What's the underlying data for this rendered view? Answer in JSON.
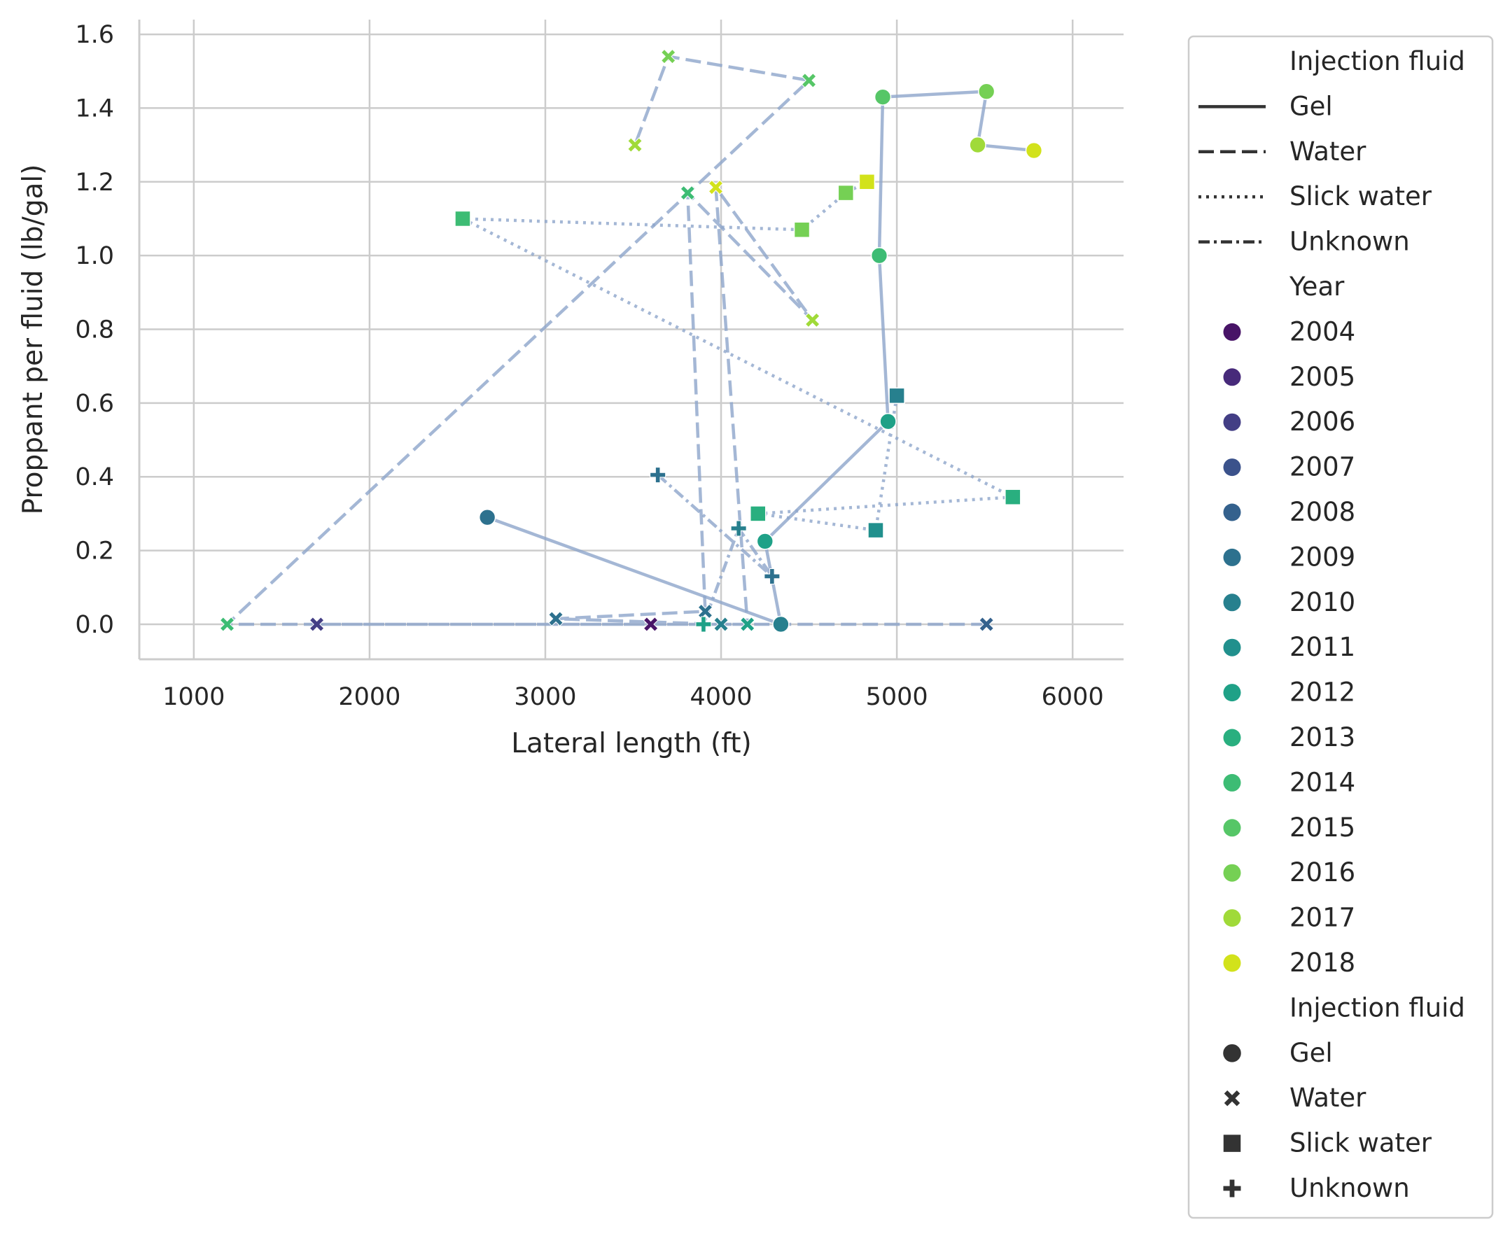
{
  "chart_data": {
    "type": "scatter",
    "xlabel": "Lateral length (ft)",
    "ylabel": "Proppant per fluid (lb/gal)",
    "xlim": [
      690,
      6290
    ],
    "ylim": [
      -0.095,
      1.64
    ],
    "x_ticks": [
      1000,
      2000,
      3000,
      4000,
      5000,
      6000
    ],
    "x_tick_labels": [
      "1000",
      "2000",
      "3000",
      "4000",
      "5000",
      "6000"
    ],
    "y_ticks": [
      0.0,
      0.2,
      0.4,
      0.6,
      0.8,
      1.0,
      1.2,
      1.4,
      1.6
    ],
    "y_tick_labels": [
      "0.0",
      "0.2",
      "0.4",
      "0.6",
      "0.8",
      "1.0",
      "1.2",
      "1.4",
      "1.6"
    ],
    "grid": true,
    "legend_position": "outside-right",
    "line_color": "#8da5ca",
    "year_colors": {
      "2004": "#481467",
      "2005": "#472a7a",
      "2006": "#433e85",
      "2007": "#3b528b",
      "2008": "#34618d",
      "2009": "#2d718e",
      "2010": "#27808e",
      "2011": "#21908d",
      "2012": "#1fa187",
      "2013": "#29af7f",
      "2014": "#3dbc74",
      "2015": "#56c667",
      "2016": "#75d054",
      "2017": "#a0da39",
      "2018": "#d2e21b"
    },
    "series": [
      {
        "name": "Gel",
        "dash": "solid",
        "marker": "circle",
        "points": [
          {
            "x": 2670,
            "y": 0.29,
            "year": "2009"
          },
          {
            "x": 4340,
            "y": 0.0,
            "year": "2010"
          },
          {
            "x": 4250,
            "y": 0.225,
            "year": "2012"
          },
          {
            "x": 4950,
            "y": 0.55,
            "year": "2012"
          },
          {
            "x": 4900,
            "y": 1.0,
            "year": "2014"
          },
          {
            "x": 4920,
            "y": 1.43,
            "year": "2015"
          },
          {
            "x": 5510,
            "y": 1.445,
            "year": "2016"
          },
          {
            "x": 5460,
            "y": 1.3,
            "year": "2017"
          },
          {
            "x": 5780,
            "y": 1.285,
            "year": "2018"
          }
        ]
      },
      {
        "name": "Water",
        "dash": "dashed",
        "marker": "x",
        "points": [
          {
            "x": 5510,
            "y": 0.0,
            "year": "2008"
          },
          {
            "x": 3600,
            "y": 0.0,
            "year": "2004"
          },
          {
            "x": 1700,
            "y": 0.0,
            "year": "2006"
          },
          {
            "x": 4000,
            "y": 0.0,
            "year": "2010"
          },
          {
            "x": 3060,
            "y": 0.015,
            "year": "2009"
          },
          {
            "x": 3910,
            "y": 0.035,
            "year": "2009"
          },
          {
            "x": 3810,
            "y": 1.17,
            "year": "2014"
          },
          {
            "x": 4520,
            "y": 0.825,
            "year": "2017"
          },
          {
            "x": 3970,
            "y": 1.185,
            "year": "2018"
          },
          {
            "x": 4150,
            "y": 0.0,
            "year": "2012"
          },
          {
            "x": 1190,
            "y": 0.0,
            "year": "2014"
          },
          {
            "x": 4500,
            "y": 1.475,
            "year": "2015"
          },
          {
            "x": 3700,
            "y": 1.54,
            "year": "2016"
          },
          {
            "x": 3510,
            "y": 1.3,
            "year": "2017"
          }
        ]
      },
      {
        "name": "Slick water",
        "dash": "dotted",
        "marker": "square",
        "points": [
          {
            "x": 5000,
            "y": 0.62,
            "year": "2010"
          },
          {
            "x": 4880,
            "y": 0.255,
            "year": "2011"
          },
          {
            "x": 4210,
            "y": 0.3,
            "year": "2013"
          },
          {
            "x": 5660,
            "y": 0.345,
            "year": "2013"
          },
          {
            "x": 2530,
            "y": 1.1,
            "year": "2014"
          },
          {
            "x": 4460,
            "y": 1.07,
            "year": "2016"
          },
          {
            "x": 4710,
            "y": 1.17,
            "year": "2016"
          },
          {
            "x": 4830,
            "y": 1.2,
            "year": "2018"
          }
        ]
      },
      {
        "name": "Unknown",
        "dash": "dashdot",
        "marker": "plus",
        "points": [
          {
            "x": 3640,
            "y": 0.405,
            "year": "2009"
          },
          {
            "x": 4290,
            "y": 0.13,
            "year": "2009"
          },
          {
            "x": 4100,
            "y": 0.26,
            "year": "2010"
          },
          {
            "x": 3900,
            "y": 0.0,
            "year": "2012"
          }
        ]
      }
    ],
    "legend": {
      "style_title": "Injection fluid",
      "style_items": [
        "Gel",
        "Water",
        "Slick water",
        "Unknown"
      ],
      "hue_title": "Year",
      "hue_items": [
        "2004",
        "2005",
        "2006",
        "2007",
        "2008",
        "2009",
        "2010",
        "2011",
        "2012",
        "2013",
        "2014",
        "2015",
        "2016",
        "2017",
        "2018"
      ],
      "marker_title": "Injection fluid",
      "marker_items": [
        {
          "label": "Gel",
          "marker": "circle"
        },
        {
          "label": "Water",
          "marker": "x"
        },
        {
          "label": "Slick water",
          "marker": "square"
        },
        {
          "label": "Unknown",
          "marker": "plus"
        }
      ]
    }
  }
}
